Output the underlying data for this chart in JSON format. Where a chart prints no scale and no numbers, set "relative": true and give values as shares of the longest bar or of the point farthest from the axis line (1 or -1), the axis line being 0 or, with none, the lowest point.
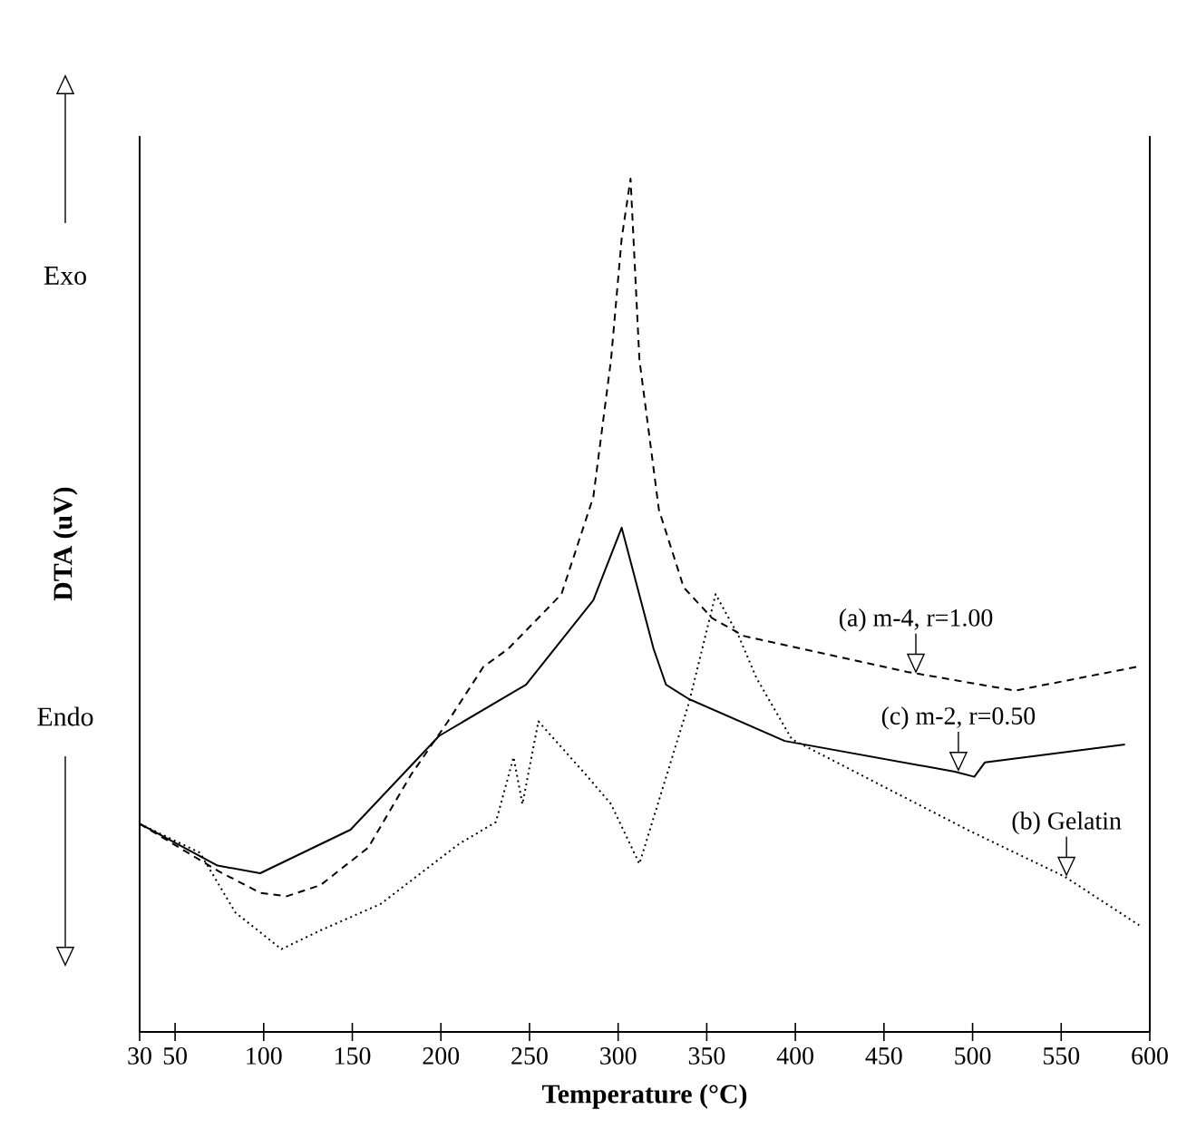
{
  "chart_data": {
    "type": "line",
    "relative": true,
    "xlabel": "Temperature (°C)",
    "ylabel": "DTA (uV)",
    "xlim": [
      30,
      600
    ],
    "xticks": [
      30,
      50,
      100,
      150,
      200,
      250,
      300,
      350,
      400,
      450,
      500,
      550,
      600
    ],
    "series": [
      {
        "color": "#000000",
        "line_style": "dashed",
        "x": [
          30,
          74,
          98,
          113,
          132,
          159,
          183,
          204,
          224,
          238,
          268,
          286,
          296,
          302,
          307,
          312,
          323,
          337,
          353,
          371,
          463,
          524,
          593
        ],
        "values": [
          0.244,
          0.189,
          0.163,
          0.159,
          0.172,
          0.216,
          0.301,
          0.364,
          0.428,
          0.449,
          0.513,
          0.627,
          0.788,
          0.93,
          1.0,
          0.788,
          0.612,
          0.521,
          0.485,
          0.464,
          0.422,
          0.4,
          0.428
        ]
      },
      {
        "color": "#000000",
        "line_style": "dotted",
        "x": [
          30,
          64,
          84,
          110,
          132,
          166,
          210,
          231,
          241,
          246,
          255,
          282,
          296,
          312,
          340,
          355,
          368,
          378,
          398,
          497,
          552,
          594
        ],
        "values": [
          0.244,
          0.21,
          0.14,
          0.097,
          0.119,
          0.15,
          0.22,
          0.246,
          0.322,
          0.267,
          0.364,
          0.301,
          0.267,
          0.197,
          0.386,
          0.513,
          0.464,
          0.415,
          0.343,
          0.237,
          0.182,
          0.125
        ]
      },
      {
        "color": "#000000",
        "line_style": "solid",
        "x": [
          30,
          74,
          98,
          149,
          199,
          248,
          286,
          302,
          320,
          327,
          340,
          394,
          490,
          501,
          507,
          586
        ],
        "values": [
          0.244,
          0.195,
          0.186,
          0.237,
          0.347,
          0.407,
          0.506,
          0.591,
          0.449,
          0.407,
          0.39,
          0.341,
          0.305,
          0.299,
          0.316,
          0.337
        ]
      }
    ],
    "annotations": [
      "Exo",
      "Endo",
      {
        "text": "(a) m-4, r=1.00",
        "x": 468,
        "y": 0.42
      },
      {
        "text": "(c) m-2, r=0.50",
        "x": 492,
        "y": 0.305
      },
      {
        "text": "(b) Gelatin",
        "x": 553,
        "y": 0.182
      }
    ]
  }
}
